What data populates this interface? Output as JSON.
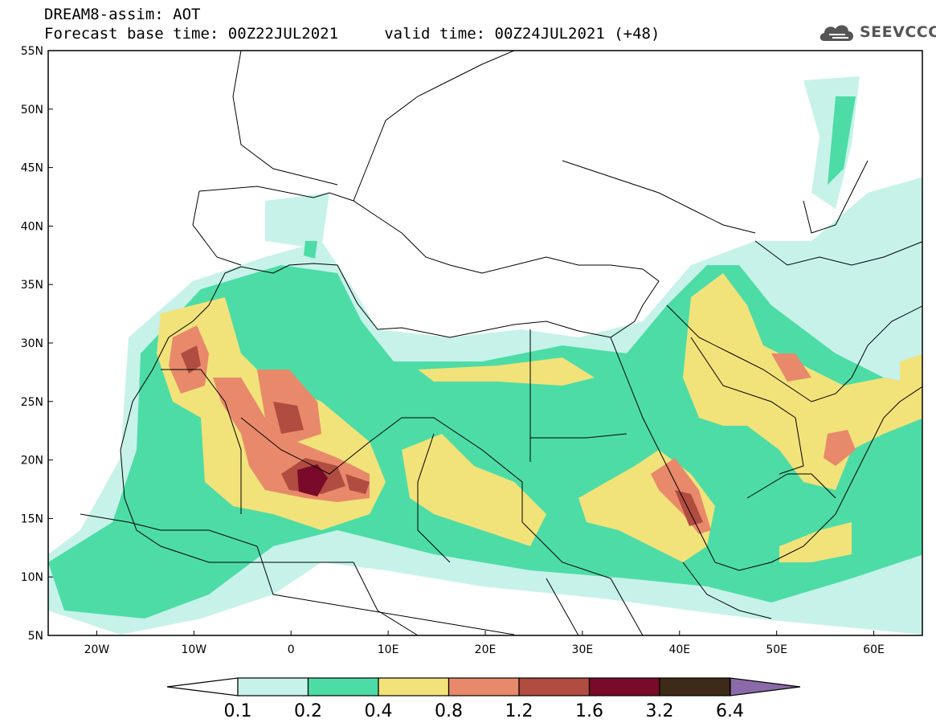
{
  "header": {
    "line1": "DREAM8-assim: AOT",
    "line2": "Forecast base time: 00Z22JUL2021     valid time: 00Z24JUL2021 (+48)"
  },
  "logo": {
    "text": "SEEVCCC",
    "icon": "cloud-icon"
  },
  "map": {
    "projection": "lat-lon",
    "lon_range": [
      -25,
      65
    ],
    "lat_range": [
      5,
      55
    ],
    "lat_ticks": [
      {
        "value": 55,
        "label": "55N"
      },
      {
        "value": 50,
        "label": "50N"
      },
      {
        "value": 45,
        "label": "45N"
      },
      {
        "value": 40,
        "label": "40N"
      },
      {
        "value": 35,
        "label": "35N"
      },
      {
        "value": 30,
        "label": "30N"
      },
      {
        "value": 25,
        "label": "25N"
      },
      {
        "value": 20,
        "label": "20N"
      },
      {
        "value": 15,
        "label": "15N"
      },
      {
        "value": 10,
        "label": "10N"
      },
      {
        "value": 5,
        "label": "5N"
      }
    ],
    "lon_ticks": [
      {
        "value": -20,
        "label": "20W"
      },
      {
        "value": -10,
        "label": "10W"
      },
      {
        "value": 0,
        "label": "0"
      },
      {
        "value": 10,
        "label": "10E"
      },
      {
        "value": 20,
        "label": "20E"
      },
      {
        "value": 30,
        "label": "30E"
      },
      {
        "value": 40,
        "label": "40E"
      },
      {
        "value": 50,
        "label": "50E"
      },
      {
        "value": 60,
        "label": "60E"
      }
    ],
    "field": "Aerosol optical thickness (AOT)"
  },
  "colorbar": {
    "bins": [
      {
        "color": "#c6f2ea"
      },
      {
        "color": "#4ddca6"
      },
      {
        "color": "#f2e27a"
      },
      {
        "color": "#e8896b"
      },
      {
        "color": "#b04c40"
      },
      {
        "color": "#7a0a2a"
      },
      {
        "color": "#3e2a18"
      }
    ],
    "over_color": "#8a6aa8",
    "under_color": "#ffffff",
    "labels": [
      "0.1",
      "0.2",
      "0.4",
      "0.8",
      "1.2",
      "1.6",
      "3.2",
      "6.4"
    ]
  },
  "colors": {
    "c1": "#c6f2ea",
    "c2": "#4ddca6",
    "c3": "#f2e27a",
    "c4": "#e8896b",
    "c5": "#b04c40",
    "c6": "#7a0a2a"
  }
}
